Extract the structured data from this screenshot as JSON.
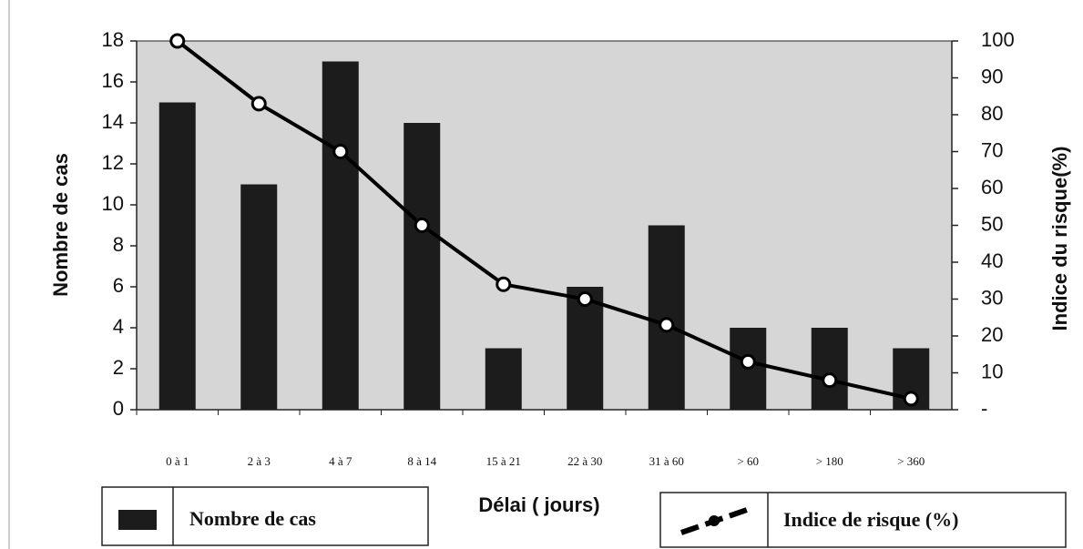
{
  "chart_data": {
    "type": "bar-line",
    "xlabel": "Délai ( jours)",
    "ylabel": "Nombre de cas",
    "y2label": "Indice du risque(%)",
    "categories": [
      "0 à 1",
      "2 à 3",
      "4 à 7",
      "8 à 14",
      "15 à 21",
      "22 à 30",
      "31 à 60",
      "> 60",
      "> 180",
      "> 360"
    ],
    "series": [
      {
        "name": "Nombre de cas",
        "type": "bar",
        "color": "#1c1c1c",
        "values": [
          15,
          11,
          17,
          14,
          3,
          6,
          9,
          4,
          4,
          3
        ]
      },
      {
        "name": "Indice de risque (%)",
        "type": "line",
        "axis": "y2",
        "color": "#000000",
        "values": [
          100,
          83,
          70,
          50,
          34,
          30,
          23,
          13,
          8,
          3
        ]
      }
    ],
    "ylim": [
      0,
      18
    ],
    "yticks": [
      0,
      2,
      4,
      6,
      8,
      10,
      12,
      14,
      16,
      18
    ],
    "y2lim": [
      0,
      100
    ],
    "y2ticks": [
      {
        "value": 0,
        "label": "-"
      },
      10,
      20,
      30,
      40,
      50,
      60,
      70,
      80,
      90,
      100
    ]
  }
}
